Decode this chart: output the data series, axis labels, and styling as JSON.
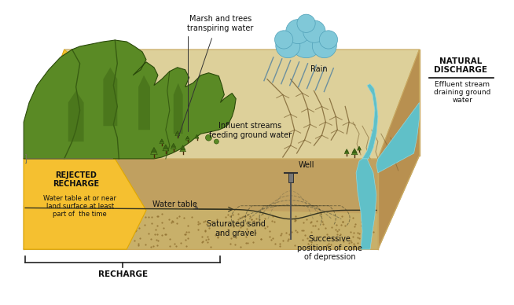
{
  "bg_color": "#ffffff",
  "fig_width": 6.54,
  "fig_height": 3.88,
  "labels": {
    "marsh_trees": "Marsh and trees\ntranspiring water",
    "rain": "Rain",
    "influent_streams": "Influent streams\nfeeding ground water",
    "natural_discharge": "NATURAL\nDISCHARGE",
    "effluent_stream": "Effluent stream\ndraining ground\nwater",
    "rejected_recharge": "REJECTED\nRECHARGE",
    "water_table_note": "Water table at or near\nland surface at least\npart of  the time",
    "recharge": "RECHARGE",
    "water_table": "Water table",
    "saturated_sand": "Saturated sand\nand gravel",
    "well": "Well",
    "successive": "Successive\npositions of cone\nof depression"
  },
  "colors": {
    "sky": "#ffffff",
    "sand_top": "#ddd09a",
    "sand_top2": "#cfc080",
    "sand_body": "#c8a860",
    "sand_side": "#b89050",
    "mountain_green": "#5a8a25",
    "mountain_mid": "#3d6515",
    "mountain_dark": "#2a4a0a",
    "yellow_zone": "#f5c030",
    "yellow_dark": "#e0a800",
    "water_blue": "#60c0c8",
    "water_light": "#90d8e0",
    "soil_brown": "#c0a060",
    "soil_dots": "#907030",
    "cloud_blue": "#80c8d8",
    "cloud_outline": "#50a0b8",
    "text_dark": "#111111",
    "line_dark": "#222222",
    "crack_color": "#888860",
    "rain_color": "#5080a0"
  }
}
